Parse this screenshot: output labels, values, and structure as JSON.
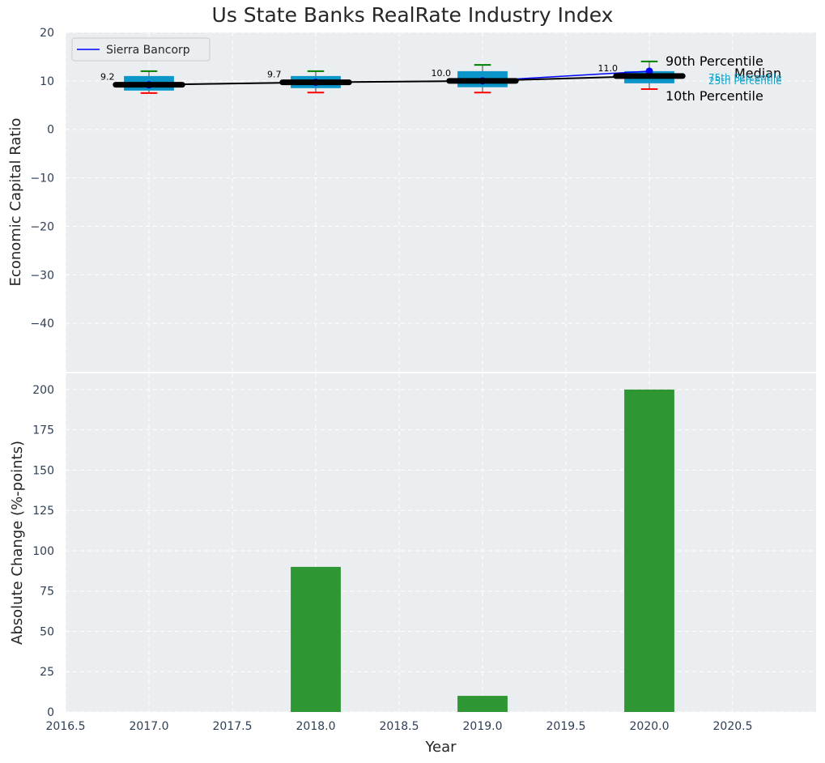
{
  "chart_data": [
    {
      "type": "box-line",
      "title": "Us State Banks RealRate Industry Index",
      "ylabel": "Economic Capital Ratio",
      "ylim": [
        -50,
        20
      ],
      "yticks": [
        "20",
        "10",
        "0",
        "−10",
        "−20",
        "−30",
        "−40"
      ],
      "ytick_values": [
        20,
        10,
        0,
        -10,
        -20,
        -30,
        -40
      ],
      "legend": {
        "label": "Sierra Bancorp",
        "color": "#0000ff",
        "position": "top-left"
      },
      "series_name": "Sierra Bancorp",
      "x": [
        2017,
        2018,
        2019,
        2020
      ],
      "company": [
        9.2,
        9.7,
        10.0,
        12.0
      ],
      "median": [
        9.2,
        9.7,
        10.0,
        11.0
      ],
      "median_labels": [
        "9.2",
        "9.7",
        "10.0",
        "11.0"
      ],
      "p10": [
        7.5,
        7.6,
        7.6,
        8.3
      ],
      "p25": [
        8.0,
        8.5,
        8.7,
        9.5
      ],
      "p75": [
        11.0,
        11.0,
        12.0,
        12.0
      ],
      "p90": [
        12.0,
        12.0,
        13.3,
        14.0
      ],
      "annotations": {
        "p90": "90th Percentile",
        "median": "Median",
        "p10": "10th Percentile",
        "p75": "75th Percentile",
        "p25": "25th Percentile"
      }
    },
    {
      "type": "bar",
      "xlabel": "Year",
      "ylabel": "Absolute Change (%-points)",
      "ylim": [
        0,
        210
      ],
      "yticks": [
        "0",
        "25",
        "50",
        "75",
        "100",
        "125",
        "150",
        "175",
        "200"
      ],
      "ytick_values": [
        0,
        25,
        50,
        75,
        100,
        125,
        150,
        175,
        200
      ],
      "xlim": [
        2016.5,
        2021.0
      ],
      "xticks": [
        "2016.5",
        "2017.0",
        "2017.5",
        "2018.0",
        "2018.5",
        "2019.0",
        "2019.5",
        "2020.0",
        "2020.5"
      ],
      "xtick_values": [
        2016.5,
        2017.0,
        2017.5,
        2018.0,
        2018.5,
        2019.0,
        2019.5,
        2020.0,
        2020.5
      ],
      "x": [
        2017,
        2018,
        2019,
        2020
      ],
      "values": [
        0,
        90,
        10,
        200
      ],
      "bar_color": "#2e9632"
    }
  ],
  "colors": {
    "plot_bg": "#eaeef0",
    "box": "#0a96c8",
    "median_line": "#000000",
    "company_line": "#0000ff",
    "p90_cap": "#008000",
    "p10_cap": "#ff0000"
  }
}
